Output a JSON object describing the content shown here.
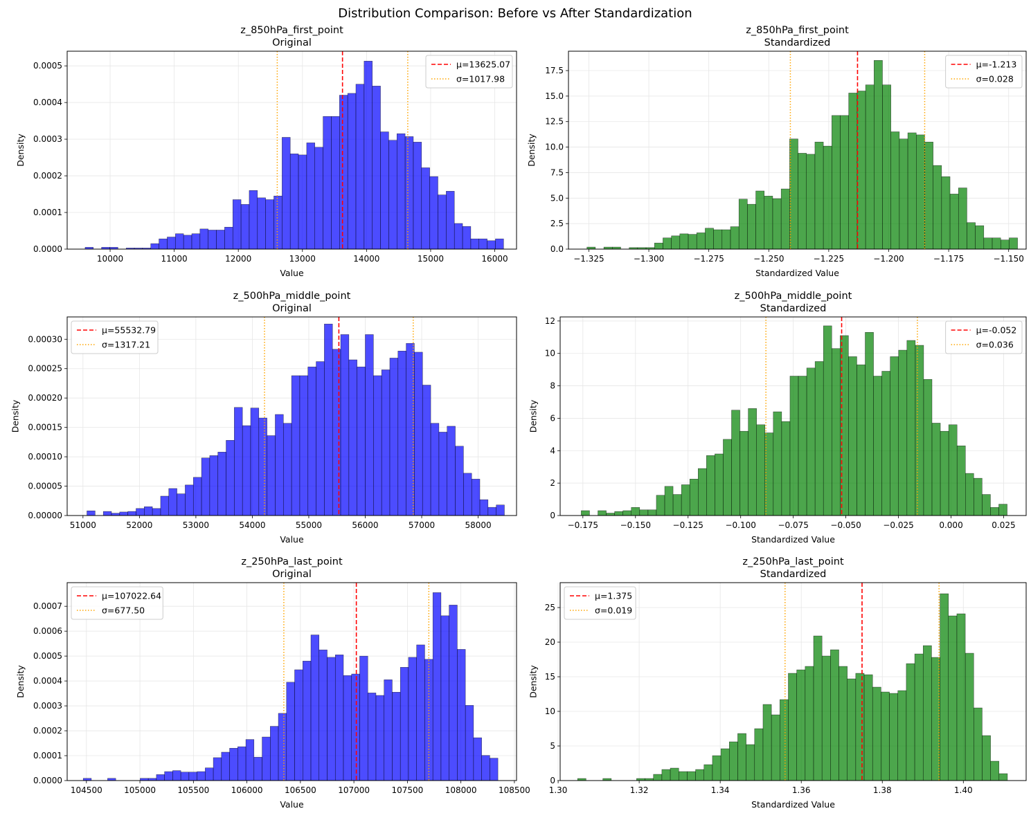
{
  "figure_title": "Distribution Comparison: Before vs After Standardization",
  "chart_data": [
    {
      "type": "bar",
      "title": "z_850hPa_first_point",
      "subtitle": "Original",
      "xlabel": "Value",
      "ylabel": "Density",
      "color": "#0000ff",
      "xlim": [
        9330,
        16340
      ],
      "ylim": [
        0,
        0.00054
      ],
      "xticks": [
        10000,
        11000,
        12000,
        13000,
        14000,
        15000,
        16000
      ],
      "xticklabels": [
        "10000",
        "11000",
        "12000",
        "13000",
        "14000",
        "15000",
        "16000"
      ],
      "yticks": [
        0,
        0.0001,
        0.0002,
        0.0003,
        0.0004,
        0.0005
      ],
      "yticklabels": [
        "0.0000",
        "0.0001",
        "0.0002",
        "0.0003",
        "0.0004",
        "0.0005"
      ],
      "bin_start": 9610,
      "bin_width": 128,
      "values": [
        5e-06,
        0,
        5e-06,
        5e-06,
        0,
        3e-06,
        3e-06,
        3e-06,
        1.5e-05,
        2.8e-05,
        3.3e-05,
        4.2e-05,
        3.8e-05,
        4.2e-05,
        5.5e-05,
        5.2e-05,
        5.2e-05,
        6e-05,
        0.000135,
        0.000122,
        0.00016,
        0.00014,
        0.000135,
        0.000145,
        0.000305,
        0.00026,
        0.000257,
        0.00029,
        0.000278,
        0.000362,
        0.000362,
        0.00042,
        0.000425,
        0.00045,
        0.000513,
        0.000445,
        0.00032,
        0.000297,
        0.000315,
        0.000307,
        0.000292,
        0.000222,
        0.000198,
        0.000148,
        0.000158,
        7e-05,
        6.2e-05,
        2.8e-05,
        2.8e-05,
        2.3e-05,
        2.8e-05
      ],
      "mean": 13625.07,
      "sigma": 1017.98,
      "legend": [
        "μ=13625.07",
        "σ=1017.98"
      ],
      "legend_position": "upper right"
    },
    {
      "type": "bar",
      "title": "z_850hPa_first_point",
      "subtitle": "Standardized",
      "xlabel": "Standardized Value",
      "ylabel": "Density",
      "color": "#008000",
      "xlim": [
        -1.3335,
        -1.1427
      ],
      "ylim": [
        0,
        19.4
      ],
      "xticks": [
        -1.325,
        -1.3,
        -1.275,
        -1.25,
        -1.225,
        -1.2,
        -1.175,
        -1.15
      ],
      "xticklabels": [
        "−1.325",
        "−1.300",
        "−1.275",
        "−1.250",
        "−1.225",
        "−1.200",
        "−1.175",
        "−1.150"
      ],
      "yticks": [
        0,
        2.5,
        5,
        7.5,
        10,
        12.5,
        15,
        17.5
      ],
      "yticklabels": [
        "0.0",
        "2.5",
        "5.0",
        "7.5",
        "10.0",
        "12.5",
        "15.0",
        "17.5"
      ],
      "bin_start": -1.3258,
      "bin_width": 0.00352,
      "values": [
        0.2,
        0,
        0.2,
        0.2,
        0,
        0.15,
        0.15,
        0.15,
        0.6,
        1.1,
        1.3,
        1.5,
        1.45,
        1.6,
        2.05,
        1.9,
        1.9,
        2.2,
        4.9,
        4.4,
        5.7,
        5.2,
        4.95,
        5.9,
        10.8,
        9.4,
        9.3,
        10.5,
        10.1,
        13.1,
        13.1,
        15.3,
        15.5,
        16.1,
        18.5,
        16.1,
        11.5,
        10.8,
        11.4,
        11.2,
        10.5,
        8.2,
        7.1,
        5.4,
        6.0,
        2.6,
        2.3,
        1.1,
        1.1,
        0.9,
        1.1
      ],
      "mean": -1.213,
      "sigma": 0.028,
      "legend": [
        "μ=-1.213",
        "σ=0.028"
      ],
      "legend_position": "upper right"
    },
    {
      "type": "bar",
      "title": "z_500hPa_middle_point",
      "subtitle": "Original",
      "xlabel": "Value",
      "ylabel": "Density",
      "color": "#0000ff",
      "xlim": [
        50720,
        58680
      ],
      "ylim": [
        0,
        0.000338
      ],
      "xticks": [
        51000,
        52000,
        53000,
        54000,
        55000,
        56000,
        57000,
        58000
      ],
      "xticklabels": [
        "51000",
        "52000",
        "53000",
        "54000",
        "55000",
        "56000",
        "57000",
        "58000"
      ],
      "yticks": [
        0,
        5e-05,
        0.0001,
        0.00015,
        0.0002,
        0.00025,
        0.0003
      ],
      "yticklabels": [
        "0.00000",
        "0.00005",
        "0.00010",
        "0.00015",
        "0.00020",
        "0.00025",
        "0.00030"
      ],
      "bin_start": 51070,
      "bin_width": 145,
      "values": [
        8e-06,
        0,
        7e-06,
        4e-06,
        6e-06,
        7e-06,
        1.2e-05,
        1.5e-05,
        1.2e-05,
        3.3e-05,
        4.6e-05,
        3.7e-05,
        5.2e-05,
        6.5e-05,
        9.8e-05,
        0.000102,
        0.000108,
        0.000128,
        0.000184,
        0.000153,
        0.000183,
        0.000166,
        0.000136,
        0.000172,
        0.000157,
        0.000238,
        0.000238,
        0.000253,
        0.000262,
        0.000326,
        0.000283,
        0.000308,
        0.000265,
        0.000253,
        0.000308,
        0.000238,
        0.000248,
        0.000268,
        0.00028,
        0.000293,
        0.000278,
        0.000222,
        0.000157,
        0.000142,
        0.000152,
        0.000118,
        7.2e-05,
        6.2e-05,
        2.7e-05,
        1.4e-05,
        1.8e-05
      ],
      "mean": 55532.79,
      "sigma": 1317.21,
      "legend": [
        "μ=55532.79",
        "σ=1317.21"
      ],
      "legend_position": "upper left"
    },
    {
      "type": "bar",
      "title": "z_500hPa_middle_point",
      "subtitle": "Standardized",
      "xlabel": "Standardized Value",
      "ylabel": "Density",
      "color": "#008000",
      "xlim": [
        -0.1858,
        0.0357
      ],
      "ylim": [
        0,
        12.25
      ],
      "xticks": [
        -0.175,
        -0.15,
        -0.125,
        -0.1,
        -0.075,
        -0.05,
        -0.025,
        0,
        0.025
      ],
      "xticklabels": [
        "−0.175",
        "−0.150",
        "−0.125",
        "−0.100",
        "−0.075",
        "−0.050",
        "−0.025",
        "0.000",
        "0.025"
      ],
      "yticks": [
        0,
        2,
        4,
        6,
        8,
        10,
        12
      ],
      "yticklabels": [
        "0",
        "2",
        "4",
        "6",
        "8",
        "10",
        "12"
      ],
      "bin_start": -0.1758,
      "bin_width": 0.00397,
      "values": [
        0.3,
        0,
        0.3,
        0.15,
        0.25,
        0.3,
        0.5,
        0.35,
        0.35,
        1.25,
        1.8,
        1.3,
        1.9,
        2.25,
        2.9,
        3.7,
        3.8,
        4.7,
        6.5,
        5.2,
        6.6,
        5.6,
        5.1,
        6.4,
        5.8,
        8.6,
        8.6,
        9.1,
        9.5,
        11.7,
        10.3,
        11.1,
        9.8,
        9.3,
        11.3,
        8.6,
        8.9,
        9.8,
        10.2,
        10.8,
        10.5,
        8.4,
        5.7,
        5.2,
        5.6,
        4.3,
        2.6,
        2.3,
        1.3,
        0.5,
        0.7
      ],
      "mean": -0.052,
      "sigma": 0.036,
      "legend": [
        "μ=-0.052",
        "σ=0.036"
      ],
      "legend_position": "upper right"
    },
    {
      "type": "bar",
      "title": "z_250hPa_last_point",
      "subtitle": "Original",
      "xlabel": "Value",
      "ylabel": "Density",
      "color": "#0000ff",
      "xlim": [
        104320,
        108520
      ],
      "ylim": [
        0,
        0.000795
      ],
      "xticks": [
        104500,
        105000,
        105500,
        106000,
        106500,
        107000,
        107500,
        108000,
        108500
      ],
      "xticklabels": [
        "104500",
        "105000",
        "105500",
        "106000",
        "106500",
        "107000",
        "107500",
        "108000",
        "108500"
      ],
      "yticks": [
        0,
        0.0001,
        0.0002,
        0.0003,
        0.0004,
        0.0005,
        0.0006,
        0.0007
      ],
      "yticklabels": [
        "0.0000",
        "0.0001",
        "0.0002",
        "0.0003",
        "0.0004",
        "0.0005",
        "0.0006",
        "0.0007"
      ],
      "bin_start": 104470,
      "bin_width": 76,
      "values": [
        9e-06,
        0,
        0,
        9e-06,
        0,
        0,
        0,
        9e-06,
        9e-06,
        2.4e-05,
        3.6e-05,
        4e-05,
        3.4e-05,
        3.4e-05,
        3.6e-05,
        5.1e-05,
        9.2e-05,
        0.000114,
        0.00013,
        0.000136,
        0.000165,
        9.4e-05,
        0.000175,
        0.000218,
        0.00027,
        0.000395,
        0.000445,
        0.00048,
        0.000585,
        0.000525,
        0.000495,
        0.000505,
        0.000422,
        0.000428,
        0.0005,
        0.000352,
        0.000342,
        0.000405,
        0.000355,
        0.000455,
        0.000495,
        0.000545,
        0.000487,
        0.000755,
        0.000662,
        0.000705,
        0.000527,
        0.000302,
        0.000172,
        0.000101,
        9e-05
      ],
      "mean": 107022.64,
      "sigma": 677.5,
      "legend": [
        "μ=107022.64",
        "σ=677.50"
      ],
      "legend_position": "upper left"
    },
    {
      "type": "bar",
      "title": "z_250hPa_last_point",
      "subtitle": "Standardized",
      "xlabel": "Standardized Value",
      "ylabel": "Density",
      "color": "#008000",
      "xlim": [
        1.3005,
        1.4155
      ],
      "ylim": [
        0,
        28.6
      ],
      "xticks": [
        1.3,
        1.32,
        1.34,
        1.36,
        1.38,
        1.4
      ],
      "xticklabels": [
        "1.30",
        "1.32",
        "1.34",
        "1.36",
        "1.38",
        "1.40"
      ],
      "yticks": [
        0,
        5,
        10,
        15,
        20,
        25
      ],
      "yticklabels": [
        "0",
        "5",
        "10",
        "15",
        "20",
        "25"
      ],
      "bin_start": 1.3048,
      "bin_width": 0.00208,
      "values": [
        0.3,
        0,
        0,
        0.3,
        0,
        0,
        0,
        0.3,
        0.3,
        0.9,
        1.6,
        1.8,
        1.3,
        1.3,
        1.6,
        2.3,
        3.6,
        4.6,
        5.6,
        6.8,
        5.2,
        7.5,
        11.0,
        9.5,
        11.7,
        15.5,
        16.0,
        16.5,
        20.9,
        18.0,
        18.9,
        16.5,
        14.7,
        15.5,
        15.3,
        13.5,
        12.8,
        12.6,
        13.0,
        16.9,
        18.3,
        19.5,
        17.8,
        27.0,
        23.8,
        24.1,
        18.4,
        10.5,
        6.5,
        2.8,
        1.0
      ],
      "mean": 1.375,
      "sigma": 0.019,
      "legend": [
        "μ=1.375",
        "σ=0.019"
      ],
      "legend_position": "upper left"
    }
  ]
}
